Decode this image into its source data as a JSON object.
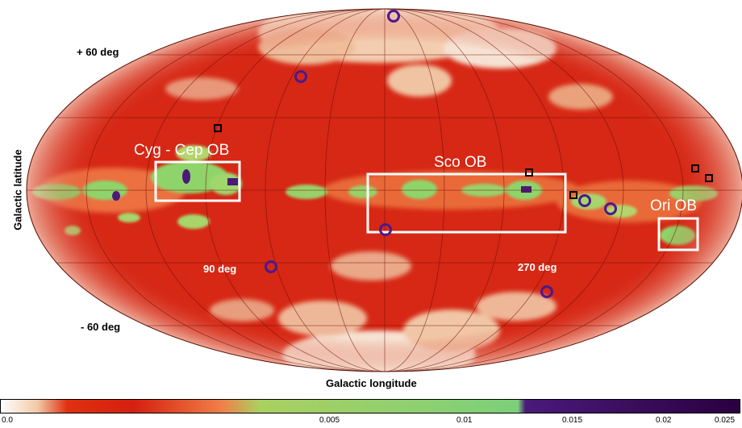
{
  "axes": {
    "ylabel": "Galactic latitude",
    "xlabel": "Galactic longitude"
  },
  "latitude_labels": [
    "+ 60 deg",
    "- 60 deg"
  ],
  "longitude_labels": [
    "90 deg",
    "270 deg"
  ],
  "regions": [
    {
      "name": "Cyg - Cep OB"
    },
    {
      "name": "Sco OB"
    },
    {
      "name": "Ori OB"
    }
  ],
  "colorbar": {
    "ticks": [
      "0.0",
      "0.005",
      "0.01",
      "0.015",
      "0.02",
      "0.025"
    ],
    "range": [
      0.0,
      0.025
    ],
    "colors": [
      "#ffffff",
      "#f1c9a8",
      "#e03010",
      "#d42010",
      "#f08048",
      "#aad060",
      "#7bd07a",
      "#4a1a7a",
      "#2a0040"
    ]
  },
  "colors": {
    "background": "#d62815",
    "dense": "#8fd46a",
    "void": "#f6e4d6",
    "marker_circle": "#4a1a8c",
    "marker_square": "#000000",
    "box": "#ffffff"
  }
}
